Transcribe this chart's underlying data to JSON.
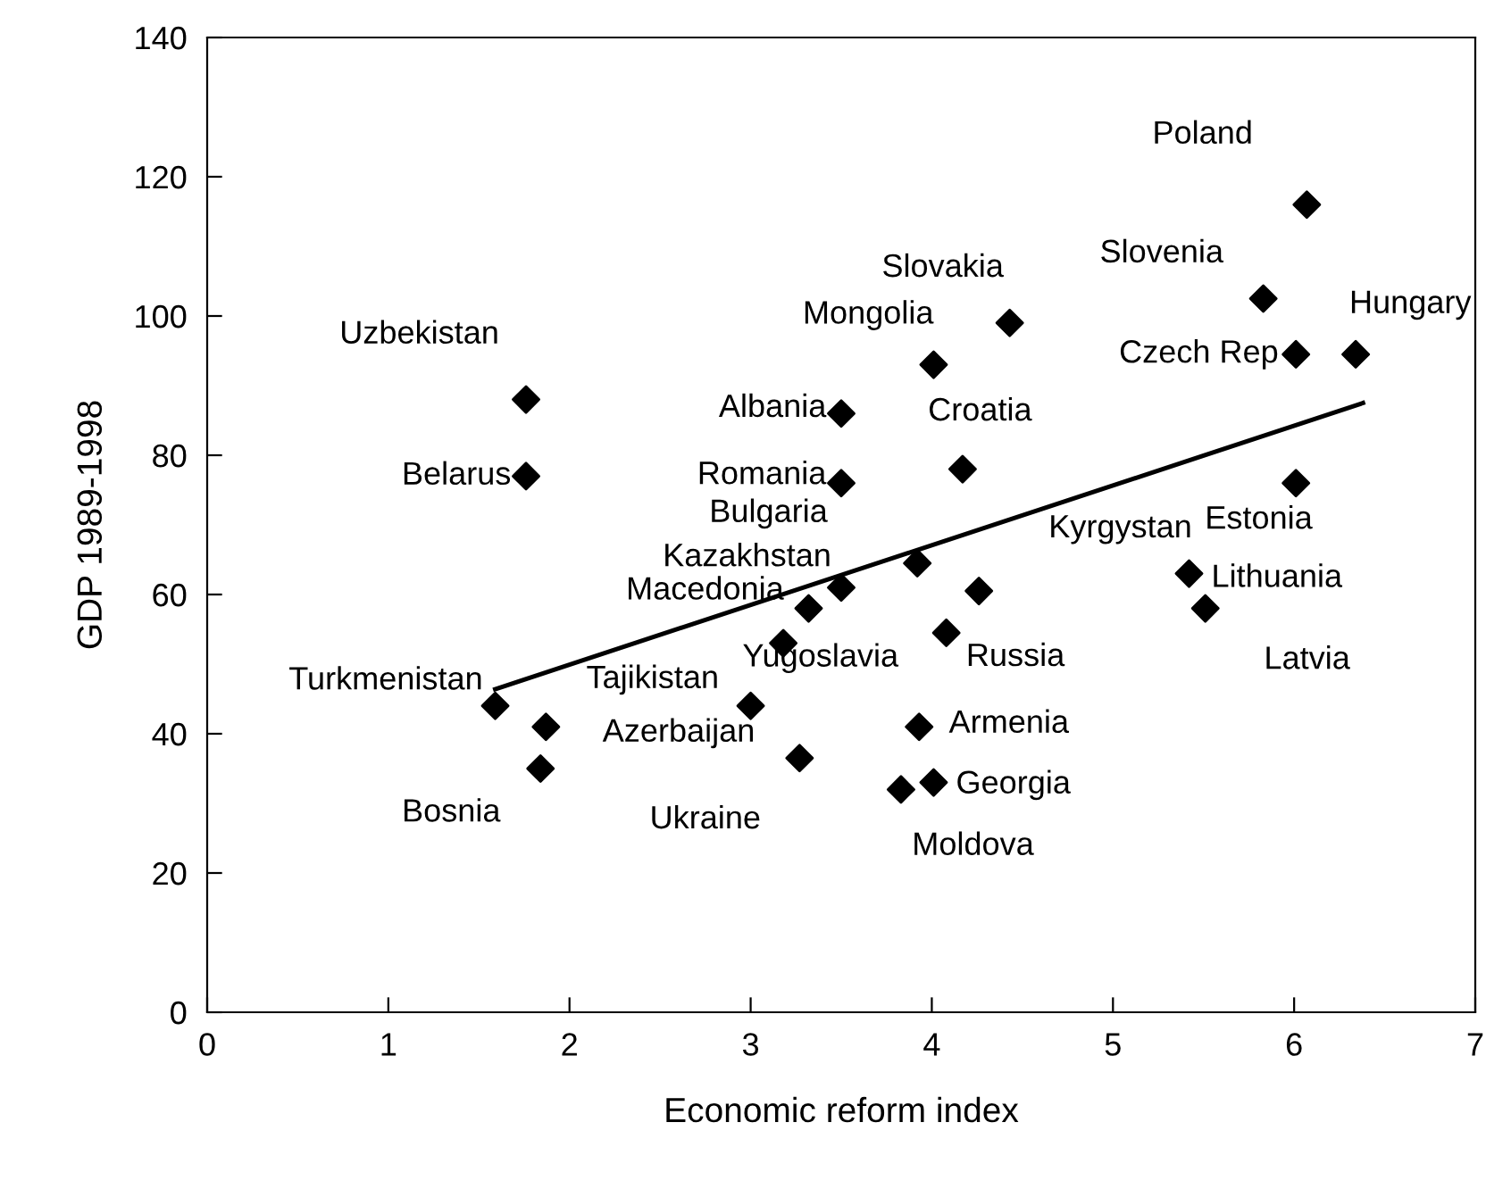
{
  "chart_data": {
    "type": "scatter",
    "xlabel": "Economic reform index",
    "ylabel": "GDP 1989-1998",
    "xlim": [
      0,
      7
    ],
    "ylim": [
      0,
      140
    ],
    "xticks": [
      0,
      1,
      2,
      3,
      4,
      5,
      6,
      7
    ],
    "yticks": [
      0,
      20,
      40,
      60,
      80,
      100,
      120,
      140
    ],
    "grid": false,
    "legend": false,
    "marker": "diamond",
    "series": [
      {
        "color": "#000000",
        "x": [
          1.76,
          1.76,
          3.5,
          3.5,
          4.01,
          4.43,
          4.17,
          5.83,
          6.01,
          6.07,
          6.34,
          6.01,
          5.42,
          5.51,
          4.26,
          4.08,
          3.93,
          4.01,
          3.83,
          3.27,
          3.5,
          3.92,
          3.32,
          3.18,
          3.0,
          1.59,
          1.87,
          1.84
        ],
        "values": [
          88,
          77,
          86,
          76,
          93,
          99,
          78,
          102.5,
          94.5,
          116,
          94.5,
          76,
          63,
          58,
          60.5,
          54.5,
          41,
          33,
          32,
          36.5,
          61,
          64.5,
          58,
          53,
          44,
          44,
          41,
          35
        ]
      },
      {
        "type": "line",
        "color": "#000000",
        "marker": "none",
        "line_style": "solid",
        "x": [
          1.59,
          6.38
        ],
        "values": [
          46.4,
          87.5
        ]
      }
    ],
    "annotations": [
      {
        "text": "Uzbekistan",
        "x": 1.76,
        "y": 88
      },
      {
        "text": "Belarus",
        "x": 1.76,
        "y": 77
      },
      {
        "text": "Albania",
        "x": 3.5,
        "y": 86
      },
      {
        "text": "Romania",
        "x": 3.5,
        "y": 76
      },
      {
        "text": "Mongolia",
        "x": 4.01,
        "y": 93
      },
      {
        "text": "Slovakia",
        "x": 4.43,
        "y": 99
      },
      {
        "text": "Croatia",
        "x": 4.17,
        "y": 78
      },
      {
        "text": "Slovenia",
        "x": 5.83,
        "y": 102.5
      },
      {
        "text": "Czech Rep",
        "x": 6.01,
        "y": 94.5
      },
      {
        "text": "Poland",
        "x": 6.07,
        "y": 116
      },
      {
        "text": "Hungary",
        "x": 6.34,
        "y": 94.5
      },
      {
        "text": "Estonia",
        "x": 6.01,
        "y": 76
      },
      {
        "text": "Lithuania",
        "x": 5.42,
        "y": 63
      },
      {
        "text": "Latvia",
        "x": 5.51,
        "y": 58
      },
      {
        "text": "Kyrgystan",
        "x": 4.26,
        "y": 60.5
      },
      {
        "text": "Russia",
        "x": 4.08,
        "y": 54.5
      },
      {
        "text": "Armenia",
        "x": 3.93,
        "y": 41
      },
      {
        "text": "Georgia",
        "x": 4.01,
        "y": 33
      },
      {
        "text": "Moldova",
        "x": 3.83,
        "y": 32
      },
      {
        "text": "Ukraine",
        "x": 3.27,
        "y": 36.5
      },
      {
        "text": "Kazakhstan",
        "x": 3.5,
        "y": 61
      },
      {
        "text": "Bulgaria",
        "x": 3.92,
        "y": 64.5
      },
      {
        "text": "Macedonia",
        "x": 3.32,
        "y": 58
      },
      {
        "text": "Yugoslavia",
        "x": 3.18,
        "y": 53
      },
      {
        "text": "Azerbaijan",
        "x": 3.0,
        "y": 44
      },
      {
        "text": "Turkmenistan",
        "x": 1.59,
        "y": 44
      },
      {
        "text": "Tajikistan",
        "x": 1.87,
        "y": 41
      },
      {
        "text": "Bosnia",
        "x": 1.84,
        "y": 35
      }
    ]
  }
}
